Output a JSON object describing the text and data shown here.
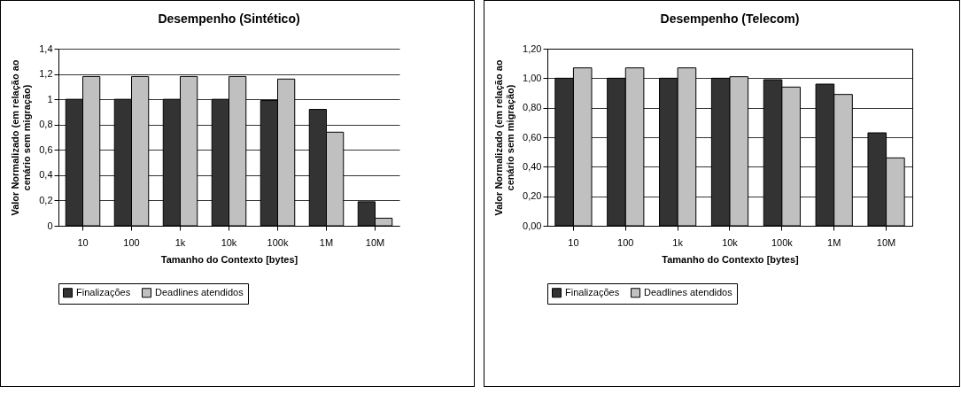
{
  "chart_data": [
    {
      "type": "bar",
      "title": "Desempenho (Sintético)",
      "xlabel": "Tamanho do Contexto [bytes]",
      "ylabel": "Valor Normalizado (em relação ao cenário sem migração)",
      "categories": [
        "10",
        "100",
        "1k",
        "10k",
        "100k",
        "1M",
        "10M"
      ],
      "series": [
        {
          "name": "Finalizações",
          "color": "#333333",
          "values": [
            1.0,
            1.0,
            1.0,
            1.0,
            0.99,
            0.92,
            0.19
          ]
        },
        {
          "name": "Deadlines atendidos",
          "color": "#c0c0c0",
          "values": [
            1.18,
            1.18,
            1.18,
            1.18,
            1.16,
            0.74,
            0.06
          ]
        }
      ],
      "ylim": [
        0,
        1.4
      ],
      "yticks": [
        0,
        {
          "value": 0.2,
          "label": "0,2"
        },
        {
          "value": 0.4,
          "label": "0,4"
        },
        {
          "value": 0.6,
          "label": "0,6"
        },
        {
          "value": 0.8,
          "label": "0,8"
        },
        1,
        {
          "value": 1.2,
          "label": "1,2"
        },
        {
          "value": 1.4,
          "label": "1,4"
        }
      ],
      "grid": "y",
      "legend": "bottom"
    },
    {
      "type": "bar",
      "title": "Desempenho (Telecom)",
      "xlabel": "Tamanho do Contexto [bytes]",
      "ylabel": "Valor Normalizado (em relação ao cenário sem migração)",
      "categories": [
        "10",
        "100",
        "1k",
        "10k",
        "100k",
        "1M",
        "10M"
      ],
      "series": [
        {
          "name": "Finalizações",
          "color": "#333333",
          "values": [
            1.0,
            1.0,
            1.0,
            1.0,
            0.99,
            0.96,
            0.63
          ]
        },
        {
          "name": "Deadlines atendidos",
          "color": "#c0c0c0",
          "values": [
            1.07,
            1.07,
            1.07,
            1.01,
            0.94,
            0.89,
            0.46
          ]
        }
      ],
      "ylim": [
        0,
        1.2
      ],
      "yticks": [
        {
          "value": 0,
          "label": "0,00"
        },
        {
          "value": 0.2,
          "label": "0,20"
        },
        {
          "value": 0.4,
          "label": "0,40"
        },
        {
          "value": 0.6,
          "label": "0,60"
        },
        {
          "value": 0.8,
          "label": "0,80"
        },
        {
          "value": 1,
          "label": "1,00"
        },
        {
          "value": 1.2,
          "label": "1,20"
        }
      ],
      "grid": "y",
      "legend": "bottom"
    }
  ]
}
